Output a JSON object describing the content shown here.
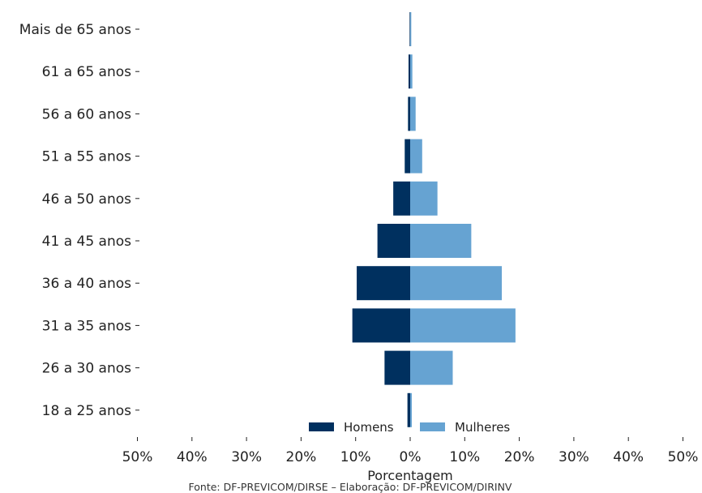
{
  "chart_data": {
    "type": "bar",
    "orientation": "horizontal",
    "layout": "population-pyramid",
    "categories": [
      "Mais de 65 anos",
      "61 a 65 anos",
      "56 a 60 anos",
      "51 a 55 anos",
      "46 a 50 anos",
      "41 a 45 anos",
      "36 a 40 anos",
      "31 a 35 anos",
      "26 a 30 anos",
      "18 a 25 anos"
    ],
    "series": [
      {
        "name": "Homens",
        "color": "#00305f",
        "values": [
          0.1,
          0.3,
          0.4,
          1.0,
          3.1,
          6.0,
          9.8,
          10.6,
          4.7,
          0.5
        ]
      },
      {
        "name": "Mulheres",
        "color": "#66a3d2",
        "values": [
          0.2,
          0.4,
          1.0,
          2.2,
          5.0,
          11.2,
          16.8,
          19.3,
          7.8,
          0.3
        ]
      }
    ],
    "xlim": [
      -50,
      50
    ],
    "xticks": [
      -50,
      -40,
      -30,
      -20,
      -10,
      0,
      10,
      20,
      30,
      40,
      50
    ],
    "xtick_labels": [
      "50%",
      "40%",
      "30%",
      "20%",
      "10%",
      "0%",
      "10%",
      "20%",
      "30%",
      "40%",
      "50%"
    ],
    "xlabel": "Porcentagem",
    "ylabel": "",
    "grid": false,
    "legend_position": "bottom-center",
    "source_note": "Fonte: DF-PREVICOM/DIRSE – Elaboração: DF-PREVICOM/DIRINV"
  }
}
